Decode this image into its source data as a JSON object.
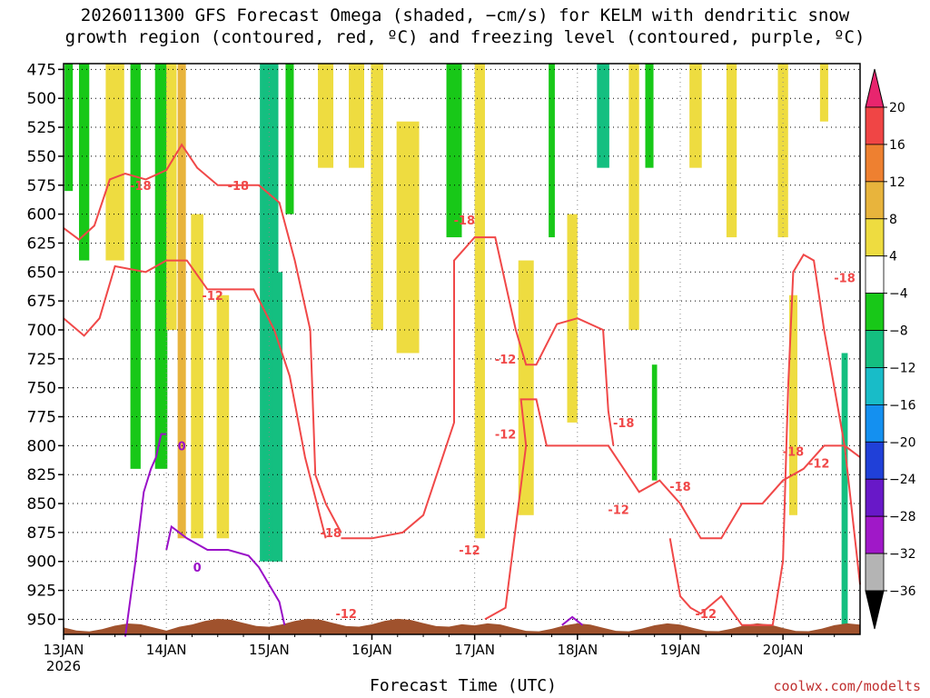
{
  "chart_data": {
    "type": "heatmap",
    "title_line1": "2026011300 GFS Forecast Omega (shaded, −cm/s) for KELM with dendritic snow",
    "title_line2": "growth region (contoured, red, ºC) and freezing level (contoured, purple, ºC)",
    "xlabel": "Forecast Time (UTC)",
    "credit": "coolwx.com/modelts",
    "y_levels": [
      "475",
      "500",
      "525",
      "550",
      "575",
      "600",
      "625",
      "650",
      "675",
      "700",
      "725",
      "750",
      "775",
      "800",
      "825",
      "850",
      "875",
      "900",
      "925",
      "950"
    ],
    "ylim": [
      470,
      963
    ],
    "x_ticks": [
      "13JAN",
      "14JAN",
      "15JAN",
      "16JAN",
      "17JAN",
      "18JAN",
      "19JAN",
      "20JAN"
    ],
    "x_year": "2026",
    "xlim_days": [
      0,
      7.75
    ],
    "colorbar": {
      "labels": [
        "20",
        "16",
        "12",
        "8",
        "4",
        "−4",
        "−8",
        "−12",
        "−16",
        "−20",
        "−24",
        "−28",
        "−32",
        "−36"
      ],
      "colors": [
        "#e8256e",
        "#f04545",
        "#ee8030",
        "#e8b43c",
        "#eedc40",
        "#ffffff",
        "#18c818",
        "#14bf80",
        "#18bcc8",
        "#1490f0",
        "#2040d8",
        "#6818c8",
        "#a018c8",
        "#b4b4b4",
        "#000000"
      ]
    },
    "contours": {
      "dendritic": {
        "color": "#f04848",
        "labels": [
          "-18",
          "-12"
        ]
      },
      "freezing": {
        "color": "#9a10c8",
        "labels": [
          "0"
        ]
      }
    },
    "shaded_regions": [
      {
        "t": 0.05,
        "p0": 470,
        "p1": 580,
        "w": 0.08,
        "v": -6
      },
      {
        "t": 0.2,
        "p0": 470,
        "p1": 640,
        "w": 0.1,
        "v": -6
      },
      {
        "t": 0.5,
        "p0": 470,
        "p1": 640,
        "w": 0.18,
        "v": 5
      },
      {
        "t": 0.7,
        "p0": 470,
        "p1": 820,
        "w": 0.1,
        "v": -6
      },
      {
        "t": 0.95,
        "p0": 470,
        "p1": 820,
        "w": 0.12,
        "v": -6
      },
      {
        "t": 1.05,
        "p0": 470,
        "p1": 700,
        "w": 0.1,
        "v": 6
      },
      {
        "t": 1.15,
        "p0": 470,
        "p1": 880,
        "w": 0.08,
        "v": 10
      },
      {
        "t": 1.3,
        "p0": 600,
        "p1": 880,
        "w": 0.12,
        "v": 6
      },
      {
        "t": 1.55,
        "p0": 670,
        "p1": 880,
        "w": 0.12,
        "v": 5
      },
      {
        "t": 2.0,
        "p0": 470,
        "p1": 900,
        "w": 0.18,
        "v": -8
      },
      {
        "t": 2.08,
        "p0": 650,
        "p1": 900,
        "w": 0.1,
        "v": -11
      },
      {
        "t": 2.2,
        "p0": 470,
        "p1": 600,
        "w": 0.08,
        "v": -6
      },
      {
        "t": 2.55,
        "p0": 470,
        "p1": 560,
        "w": 0.15,
        "v": 5
      },
      {
        "t": 2.85,
        "p0": 470,
        "p1": 560,
        "w": 0.15,
        "v": 5
      },
      {
        "t": 3.05,
        "p0": 470,
        "p1": 700,
        "w": 0.12,
        "v": 5
      },
      {
        "t": 3.35,
        "p0": 520,
        "p1": 720,
        "w": 0.22,
        "v": 6
      },
      {
        "t": 3.8,
        "p0": 470,
        "p1": 620,
        "w": 0.15,
        "v": -6
      },
      {
        "t": 4.05,
        "p0": 470,
        "p1": 880,
        "w": 0.1,
        "v": 5
      },
      {
        "t": 4.5,
        "p0": 640,
        "p1": 860,
        "w": 0.15,
        "v": 5
      },
      {
        "t": 4.75,
        "p0": 470,
        "p1": 620,
        "w": 0.06,
        "v": -6
      },
      {
        "t": 4.95,
        "p0": 600,
        "p1": 780,
        "w": 0.1,
        "v": 5
      },
      {
        "t": 5.25,
        "p0": 470,
        "p1": 560,
        "w": 0.12,
        "v": -9
      },
      {
        "t": 5.55,
        "p0": 470,
        "p1": 700,
        "w": 0.1,
        "v": 5
      },
      {
        "t": 5.7,
        "p0": 470,
        "p1": 560,
        "w": 0.08,
        "v": -6
      },
      {
        "t": 5.75,
        "p0": 730,
        "p1": 830,
        "w": 0.05,
        "v": -6
      },
      {
        "t": 6.15,
        "p0": 470,
        "p1": 560,
        "w": 0.12,
        "v": 5
      },
      {
        "t": 6.5,
        "p0": 470,
        "p1": 620,
        "w": 0.1,
        "v": 5
      },
      {
        "t": 7.0,
        "p0": 470,
        "p1": 620,
        "w": 0.1,
        "v": 5
      },
      {
        "t": 7.1,
        "p0": 670,
        "p1": 860,
        "w": 0.08,
        "v": 5
      },
      {
        "t": 7.4,
        "p0": 470,
        "p1": 520,
        "w": 0.08,
        "v": 5
      },
      {
        "t": 7.6,
        "p0": 720,
        "p1": 960,
        "w": 0.06,
        "v": -8
      }
    ]
  }
}
